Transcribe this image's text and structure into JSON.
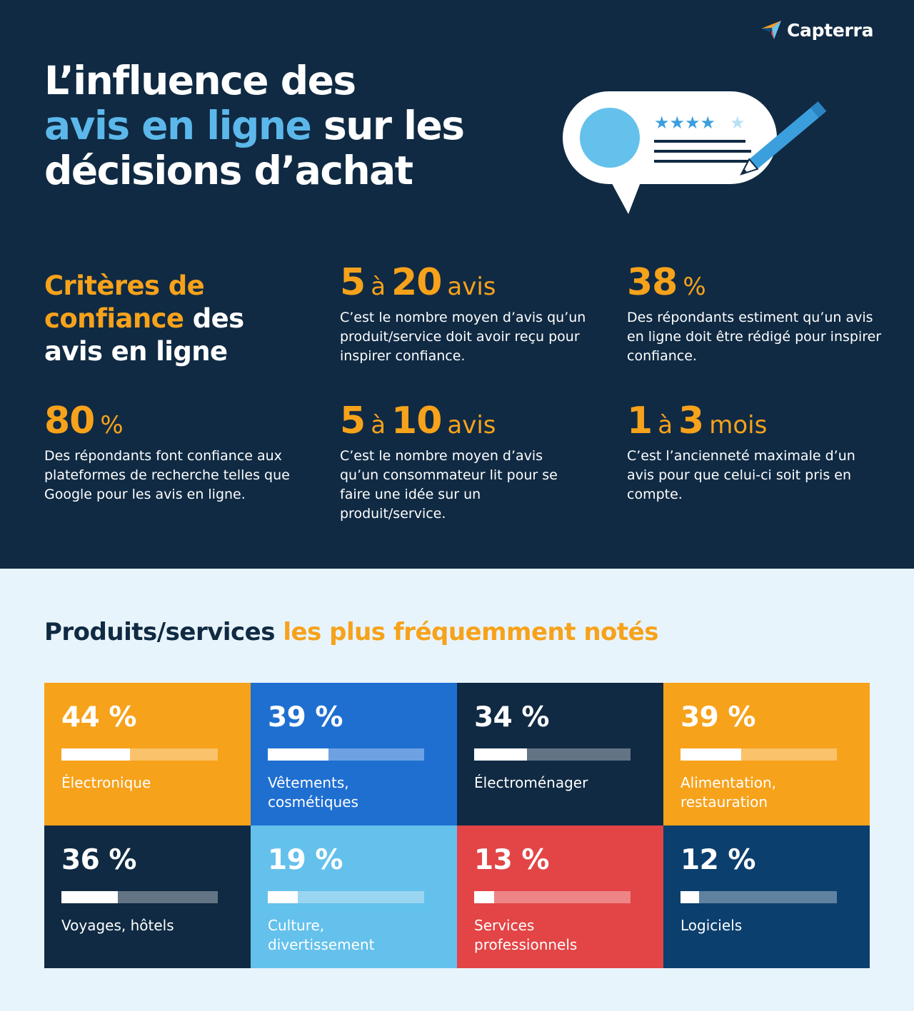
{
  "brand": {
    "name": "Capterra",
    "icon": "capterra-arrow-logo"
  },
  "header": {
    "title_line1": "L’influence des",
    "title_highlight": "avis en ligne",
    "title_line2_rest": " sur les",
    "title_line3": "décisions d’achat"
  },
  "illustration": {
    "icon": "review-speech-bubble-with-stars-and-pencil",
    "stars_filled": 4,
    "stars_total": 5
  },
  "criteria": {
    "title_orange_1": "Critères de",
    "title_orange_2": "confiance",
    "title_white_2": " des",
    "title_white_3": "avis en ligne"
  },
  "stats": [
    {
      "n1": "5",
      "mid": "à",
      "n2": "20",
      "suffix": "avis",
      "desc": "C’est le nombre moyen d’avis qu’un produit/service doit avoir reçu pour inspirer confiance."
    },
    {
      "n1": "38",
      "mid": "",
      "n2": "",
      "suffix": "%",
      "desc": "Des répondants estiment qu’un avis en ligne doit être rédigé pour inspirer confiance."
    },
    {
      "n1": "80",
      "mid": "",
      "n2": "",
      "suffix": "%",
      "desc": "Des répondants font confiance aux plateformes de recherche telles que Google pour les avis en ligne."
    },
    {
      "n1": "5",
      "mid": "à",
      "n2": "10",
      "suffix": "avis",
      "desc": "C’est le nombre moyen d’avis qu’un consommateur lit pour se faire une idée sur un produit/service."
    },
    {
      "n1": "1",
      "mid": "à",
      "n2": "3",
      "suffix": "mois",
      "desc": "C’est l’ancienneté maximale d’un avis pour que celui-ci soit pris en compte."
    }
  ],
  "products": {
    "title_dark": "Produits/services",
    "title_orange": " les plus fréquemment notés",
    "items": [
      {
        "pct": "44 %",
        "value": 44,
        "label": "Électronique",
        "color": "#f7a21b"
      },
      {
        "pct": "39 %",
        "value": 39,
        "label": "Vêtements,\ncosmétiques",
        "color": "#1f6fd1"
      },
      {
        "pct": "34 %",
        "value": 34,
        "label": "Électroménager",
        "color": "#102a43"
      },
      {
        "pct": "39 %",
        "value": 39,
        "label": "Alimentation,\nrestauration",
        "color": "#f7a21b"
      },
      {
        "pct": "36 %",
        "value": 36,
        "label": "Voyages, hôtels",
        "color": "#102a43"
      },
      {
        "pct": "19 %",
        "value": 19,
        "label": "Culture,\ndivertissement",
        "color": "#64c1ec"
      },
      {
        "pct": "13 %",
        "value": 13,
        "label": "Services\nprofessionnels",
        "color": "#e34446"
      },
      {
        "pct": "12 %",
        "value": 12,
        "label": "Logiciels",
        "color": "#0b3f6e"
      }
    ]
  },
  "colors": {
    "navy": "#102a43",
    "orange": "#f7a21b",
    "light_blue": "#5cb8ea",
    "pale_bg": "#e8f4fb"
  }
}
